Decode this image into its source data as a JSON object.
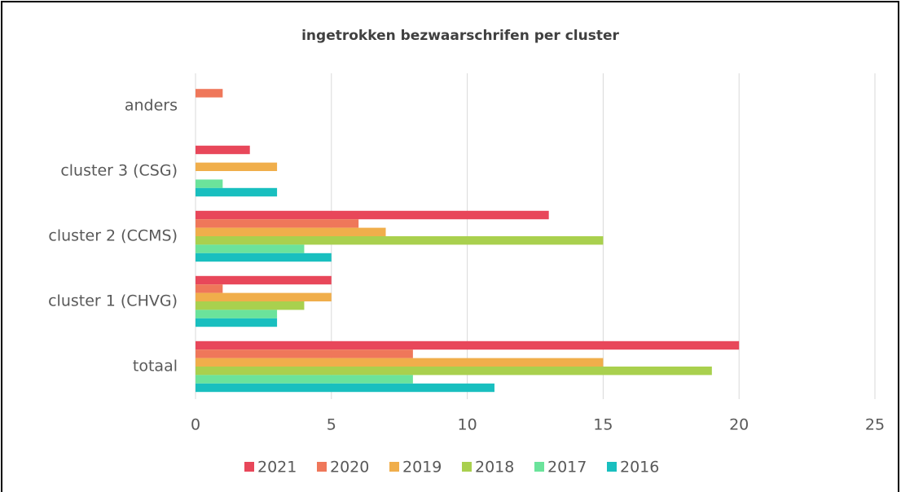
{
  "chart_data": {
    "type": "hbar",
    "title": "ingetrokken bezwaarschrifen per cluster",
    "categories": [
      "anders",
      "cluster 3 (CSG)",
      "cluster 2 (CCMS)",
      "cluster 1 (CHVG)",
      "totaal"
    ],
    "series": [
      {
        "name": "2021",
        "color": "#e8475a",
        "values": [
          0,
          2,
          13,
          5,
          20
        ]
      },
      {
        "name": "2020",
        "color": "#ef775a",
        "values": [
          1,
          0,
          6,
          1,
          8
        ]
      },
      {
        "name": "2019",
        "color": "#f0ae4b",
        "values": [
          0,
          3,
          7,
          5,
          15
        ]
      },
      {
        "name": "2018",
        "color": "#a9d04e",
        "values": [
          0,
          0,
          15,
          4,
          19
        ]
      },
      {
        "name": "2017",
        "color": "#6be39b",
        "values": [
          0,
          1,
          4,
          3,
          8
        ]
      },
      {
        "name": "2016",
        "color": "#19bfbf",
        "values": [
          0,
          3,
          5,
          3,
          11
        ]
      }
    ],
    "xlim": [
      0,
      25
    ],
    "xticks": [
      0,
      5,
      10,
      15,
      20,
      25
    ],
    "grid": true,
    "legend": "bottom"
  }
}
